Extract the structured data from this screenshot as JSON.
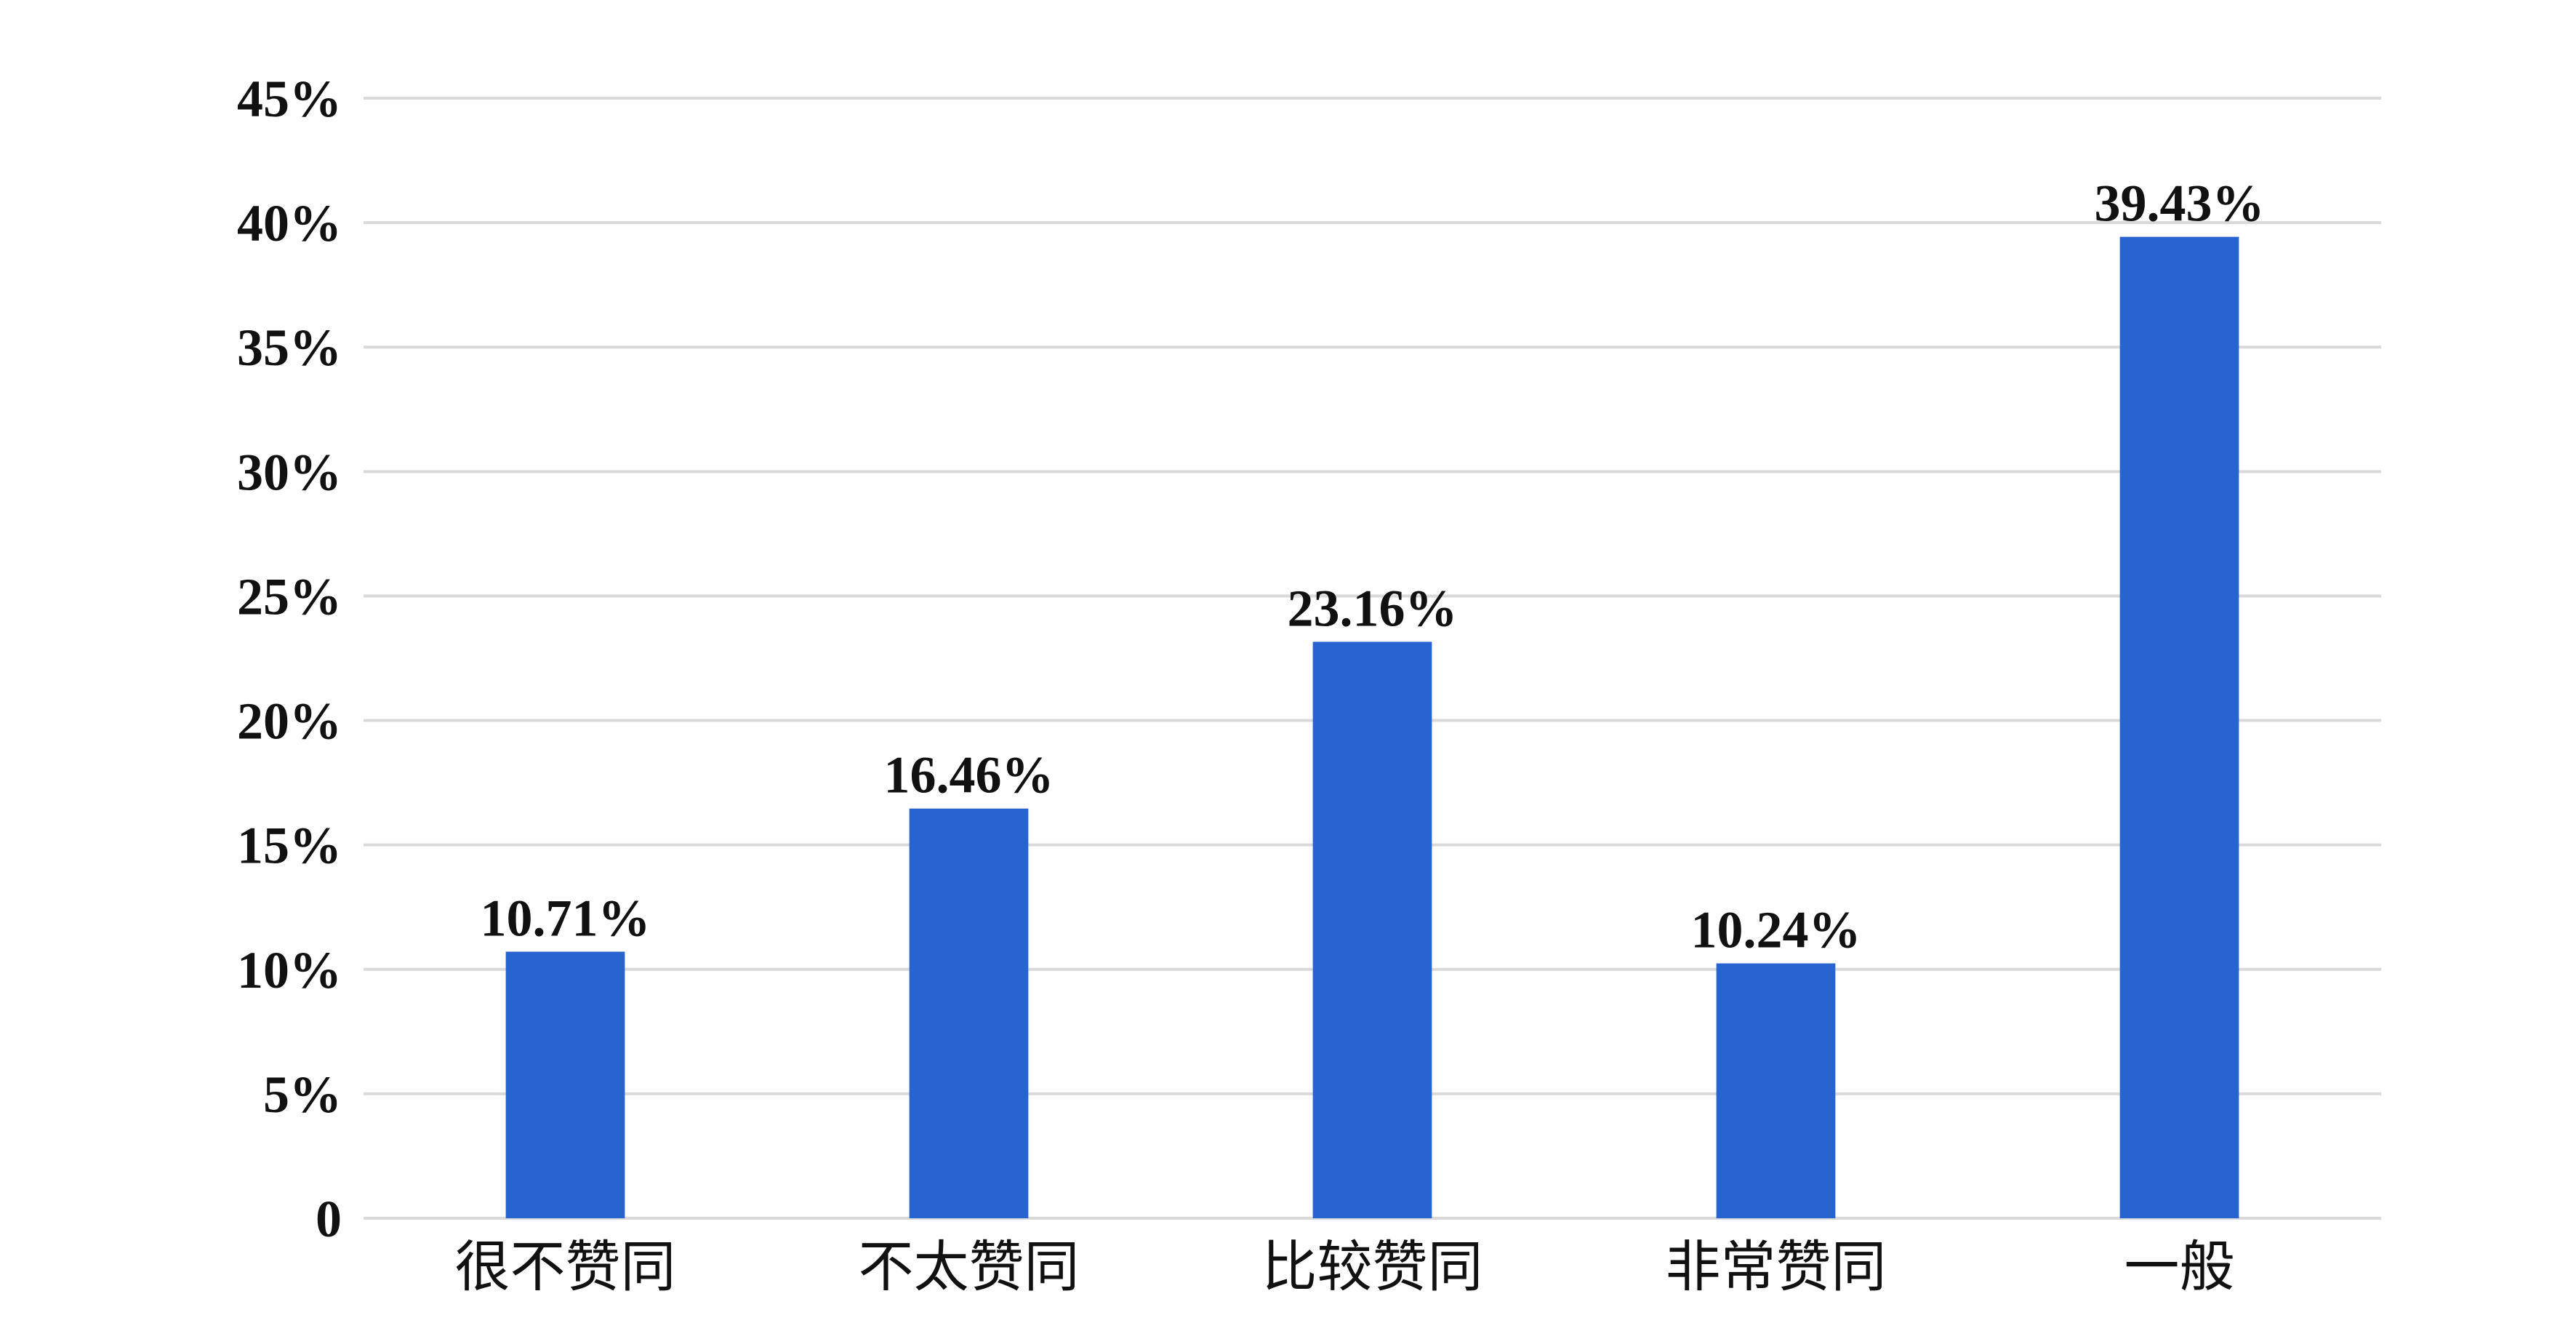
{
  "chart_data": {
    "type": "bar",
    "categories": [
      "很不赞同",
      "不太赞同",
      "比较赞同",
      "非常赞同",
      "一般"
    ],
    "values": [
      10.71,
      16.46,
      23.16,
      10.24,
      39.43
    ],
    "value_labels": [
      "10.71%",
      "16.46%",
      "23.16%",
      "10.24%",
      "39.43%"
    ],
    "title": "",
    "xlabel": "",
    "ylabel": "",
    "ylim": [
      0,
      45
    ],
    "y_ticks": [
      0,
      5,
      10,
      15,
      20,
      25,
      30,
      35,
      40,
      45
    ],
    "y_tick_labels": [
      "0",
      "5%",
      "10%",
      "15%",
      "20%",
      "25%",
      "30%",
      "35%",
      "40%",
      "45%"
    ],
    "grid": true,
    "legend": "none",
    "bar_color": "#2864CF",
    "grid_color": "#D9D9D9"
  }
}
